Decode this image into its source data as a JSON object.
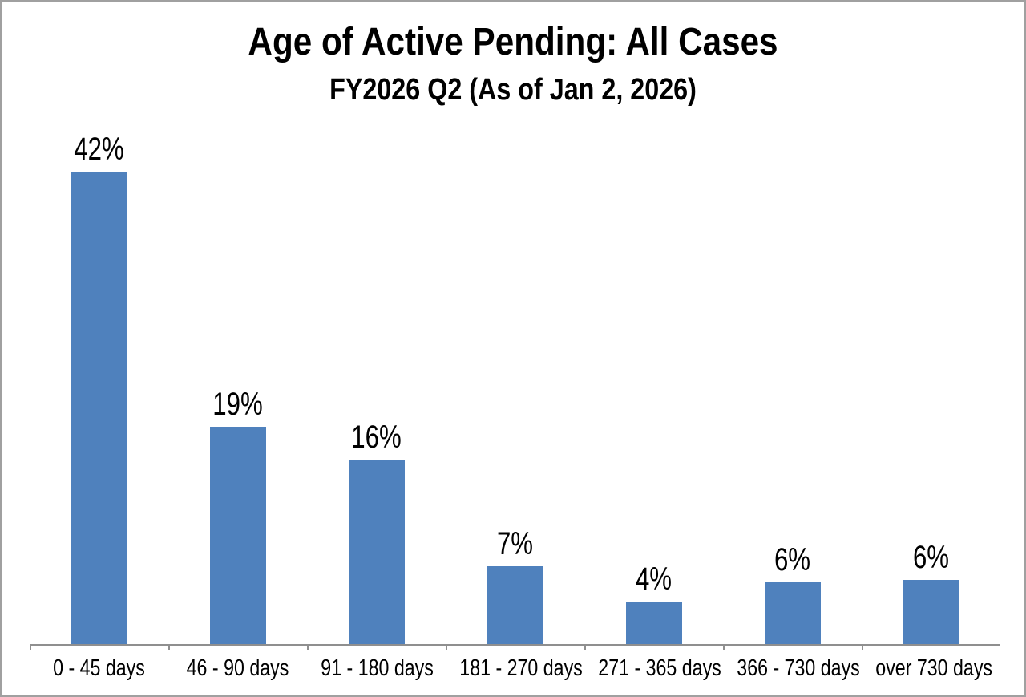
{
  "frame": {
    "background": "#ffffff",
    "border_color": "#a0a0a0"
  },
  "chart_data": {
    "type": "bar",
    "title": "Age of Active Pending: All Cases",
    "subtitle": "FY2026 Q2 (As of Jan 2, 2026)",
    "categories": [
      "0 - 45 days",
      "46 - 90 days",
      "91 - 180 days",
      "181 - 270 days",
      "271 - 365 days",
      "366 - 730 days",
      "over 730 days"
    ],
    "values": [
      42,
      19,
      16,
      7,
      4,
      6,
      6
    ],
    "value_labels": [
      "42%",
      "19%",
      "16%",
      "7%",
      "4%",
      "6%",
      "6%"
    ],
    "values_exact_est": [
      42.0,
      19.3,
      16.4,
      6.9,
      3.75,
      5.5,
      5.7
    ],
    "xlabel": "",
    "ylabel": "",
    "ylim": [
      0,
      45
    ],
    "grid": false,
    "legend": "none",
    "data_labels": "above-bars",
    "bar_color": "#4F81BD",
    "axis_color": "#8f8f8f",
    "text_color": "#000000"
  }
}
